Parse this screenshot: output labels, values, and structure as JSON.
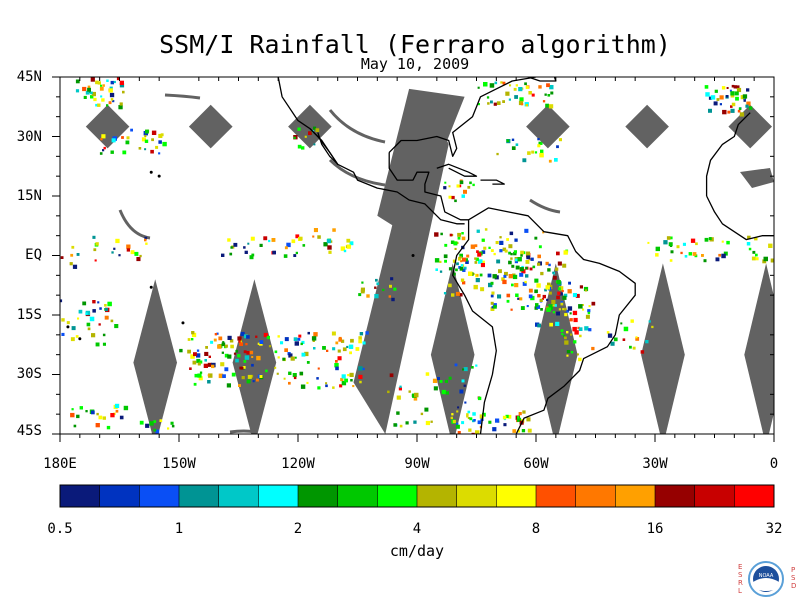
{
  "title": "SSM/I Rainfall (Ferraro algorithm)",
  "date": "May 10, 2009",
  "map": {
    "lat_labels": [
      "45N",
      "30N",
      "15N",
      "EQ",
      "15S",
      "30S",
      "45S"
    ],
    "lon_labels": [
      "180E",
      "150W",
      "120W",
      "90W",
      "60W",
      "30W",
      "0"
    ],
    "lat_range": [
      -45,
      45
    ],
    "lon_range": [
      -180,
      0
    ],
    "swath_gap_color": "#626262",
    "coastline_color": "#000000"
  },
  "colorbar": {
    "tick_labels": [
      "0.5",
      "1",
      "2",
      "4",
      "8",
      "16",
      "32"
    ],
    "unit": "cm/day",
    "colors": [
      "#0a1a7a",
      "#0033c0",
      "#0a4ff5",
      "#009494",
      "#00c8c8",
      "#00ffff",
      "#009600",
      "#00c800",
      "#00ff00",
      "#b4b400",
      "#dcdc00",
      "#ffff00",
      "#ff5000",
      "#ff7800",
      "#ffa000",
      "#960000",
      "#c80000",
      "#ff0000"
    ]
  },
  "logo": {
    "left_letters": "E S R L",
    "right_letters": "P S D",
    "center_text": "NOAA"
  }
}
